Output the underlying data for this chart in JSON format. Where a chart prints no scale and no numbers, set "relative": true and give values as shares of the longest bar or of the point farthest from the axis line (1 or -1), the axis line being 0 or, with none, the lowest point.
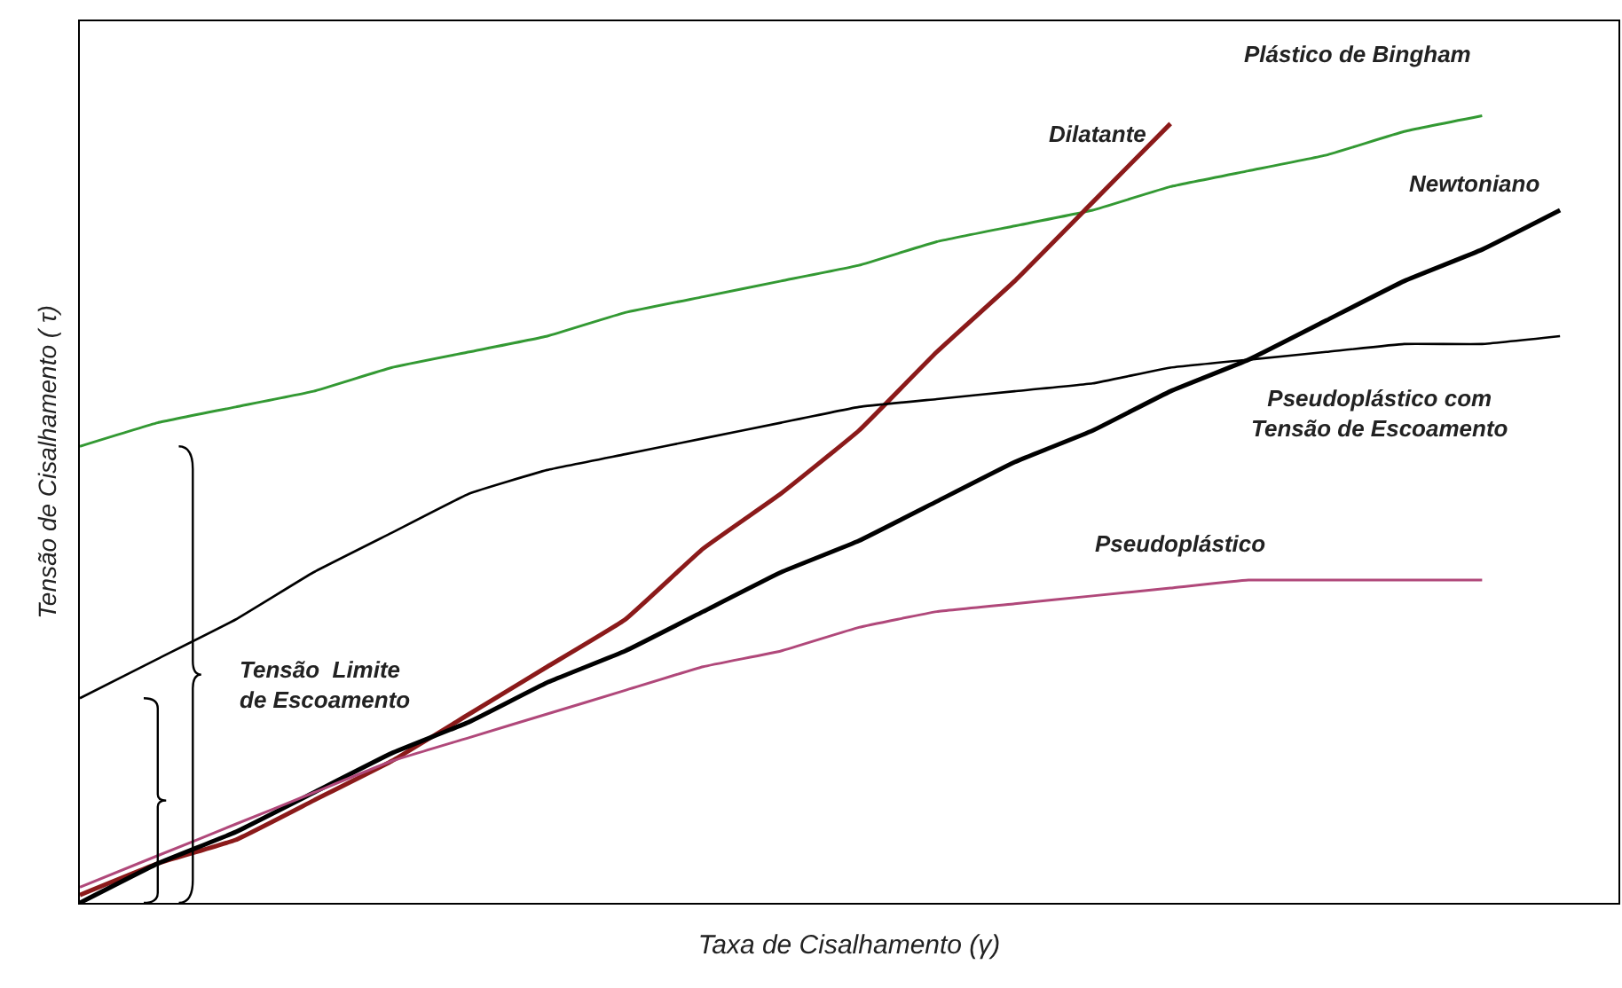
{
  "chart_data": {
    "type": "line",
    "relative": true,
    "xlabel": "Taxa de Cisalhamento (γ)",
    "ylabel": "Tensão de Cisalhamento ( τ)",
    "categories": [
      null,
      null,
      null,
      null,
      null,
      null,
      null,
      null,
      null,
      null,
      null,
      null,
      null,
      null,
      null,
      null,
      null,
      null,
      null,
      null
    ],
    "series": [
      {
        "name": "Plástico de Bingham",
        "color": "#339933",
        "values": [
          0.58,
          0.61,
          0.63,
          0.65,
          0.68,
          0.7,
          0.72,
          0.75,
          0.77,
          0.79,
          0.81,
          0.84,
          0.86,
          0.88,
          0.91,
          0.93,
          0.95,
          0.98,
          1.0,
          null
        ]
      },
      {
        "name": "Dilatante",
        "color": "#8b1a1a",
        "values": [
          0.01,
          0.05,
          0.08,
          0.13,
          0.18,
          0.24,
          0.3,
          0.36,
          0.45,
          0.52,
          0.6,
          0.7,
          0.79,
          0.89,
          0.99,
          null,
          null,
          null,
          null,
          null
        ]
      },
      {
        "name": "Newtoniano",
        "color": "#000000",
        "values": [
          0,
          0.05,
          0.09,
          0.14,
          0.19,
          0.23,
          0.28,
          0.32,
          0.37,
          0.42,
          0.46,
          0.51,
          0.56,
          0.6,
          0.65,
          0.69,
          0.74,
          0.79,
          0.83,
          0.88
        ]
      },
      {
        "name": "Pseudoplástico com\nTensão de Escoamento",
        "color": "#000000",
        "values": [
          0.26,
          0.31,
          0.36,
          0.42,
          0.47,
          0.52,
          0.55,
          0.57,
          0.59,
          0.61,
          0.63,
          0.64,
          0.65,
          0.66,
          0.68,
          0.69,
          0.7,
          0.71,
          0.71,
          0.72
        ]
      },
      {
        "name": "Pseudoplástico",
        "color": "#b0487a",
        "values": [
          0.02,
          0.06,
          0.1,
          0.14,
          0.18,
          0.21,
          0.24,
          0.27,
          0.3,
          0.32,
          0.35,
          0.37,
          0.38,
          0.39,
          0.4,
          0.41,
          0.41,
          0.41,
          0.41,
          null
        ]
      }
    ],
    "annotations": [
      "Tensão  Limite\nde Escoamento"
    ],
    "legend": false,
    "grid": false
  }
}
